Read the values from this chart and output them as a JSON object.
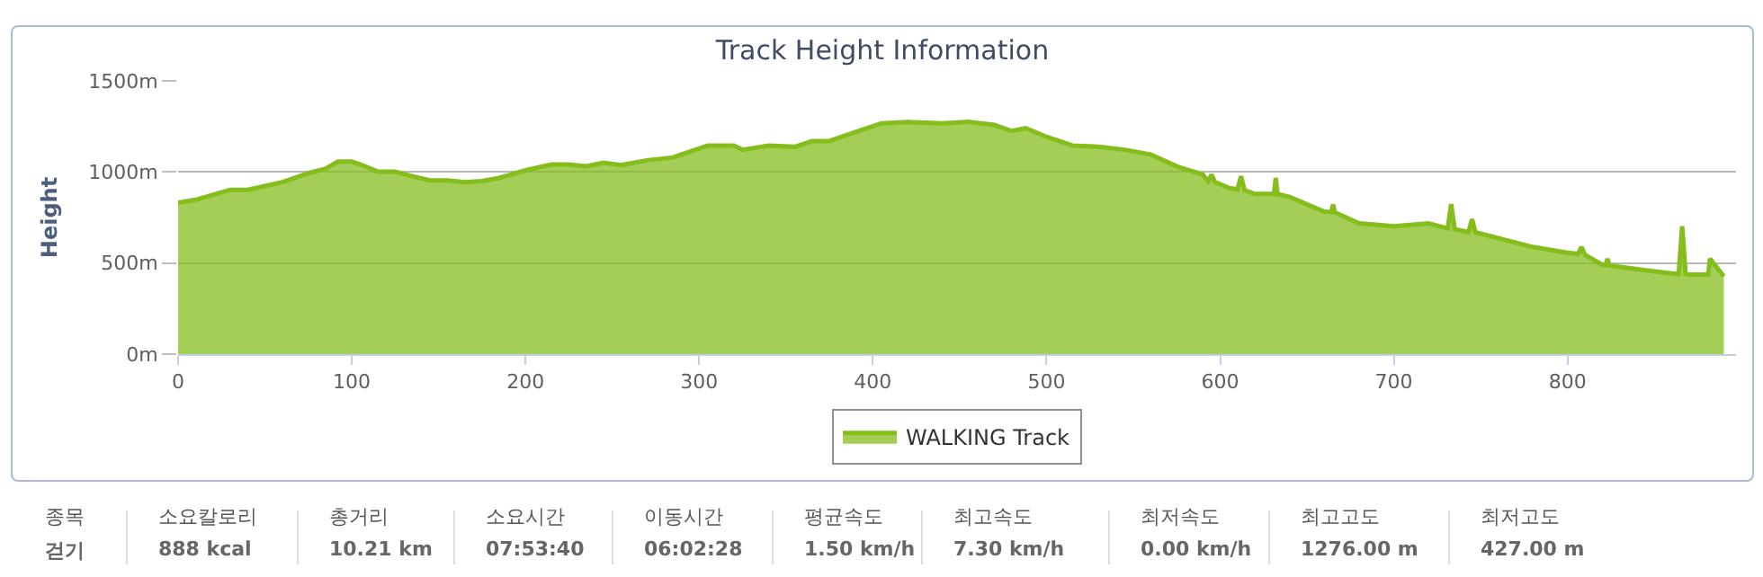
{
  "chart_data": {
    "type": "area",
    "title": "Track Height Information",
    "ylabel": "Height",
    "x": [
      0,
      10,
      30,
      40,
      60,
      65,
      75,
      85,
      92,
      100,
      105,
      115,
      125,
      135,
      145,
      155,
      165,
      175,
      185,
      200,
      215,
      225,
      235,
      245,
      255,
      270,
      285,
      305,
      320,
      325,
      340,
      355,
      365,
      375,
      390,
      405,
      420,
      440,
      455,
      470,
      480,
      488,
      500,
      515,
      530,
      545,
      560,
      575,
      590,
      593,
      595,
      597,
      605,
      610,
      612,
      614,
      620,
      630,
      631,
      632,
      633,
      640,
      660,
      664,
      665,
      666,
      680,
      700,
      720,
      731,
      733,
      735,
      743,
      745,
      747,
      760,
      780,
      800,
      806,
      808,
      810,
      820,
      822,
      823,
      824,
      840,
      860,
      864,
      866,
      868,
      870,
      880,
      881,
      882,
      890
    ],
    "series": [
      {
        "name": "WALKING Track",
        "color": "#85bd1c",
        "values": [
          831,
          847,
          902,
          902,
          944,
          960,
          993,
          1018,
          1057,
          1057,
          1041,
          1002,
          1002,
          976,
          954,
          954,
          944,
          950,
          967,
          1009,
          1041,
          1041,
          1031,
          1051,
          1038,
          1064,
          1080,
          1145,
          1145,
          1122,
          1145,
          1138,
          1170,
          1170,
          1219,
          1267,
          1274,
          1267,
          1276,
          1258,
          1225,
          1241,
          1193,
          1145,
          1138,
          1122,
          1096,
          1031,
          986,
          950,
          985,
          945,
          912,
          905,
          976,
          900,
          879,
          879,
          879,
          967,
          879,
          863,
          782,
          780,
          821,
          778,
          718,
          702,
          718,
          690,
          824,
          686,
          670,
          740,
          669,
          637,
          588,
          556,
          550,
          588,
          545,
          491,
          489,
          524,
          487,
          466,
          443,
          440,
          702,
          440,
          437,
          437,
          437,
          524,
          427
        ]
      }
    ],
    "xlim": [
      0,
      897
    ],
    "xticks": [
      0,
      100,
      200,
      300,
      400,
      500,
      600,
      700,
      800
    ],
    "ylim": [
      0,
      1500
    ],
    "yticks": [
      {
        "value": 0,
        "label": "0m"
      },
      {
        "value": 500,
        "label": "500m"
      },
      {
        "value": 1000,
        "label": "1000m"
      },
      {
        "value": 1500,
        "label": "1500m"
      }
    ],
    "grid": "y",
    "legend": "bottom",
    "annotations": [
      "종목",
      "걷기",
      "소요칼로리",
      "888 kcal",
      "총거리",
      "10.21 km",
      "소요시간",
      "07:53:40",
      "이동시간",
      "06:02:28",
      "평균속도",
      "1.50 km/h",
      "최고속도",
      "7.30 km/h",
      "최저속도",
      "0.00 km/h",
      "최고고도",
      "1276.00 m",
      "최저고도",
      "427.00 m"
    ]
  }
}
